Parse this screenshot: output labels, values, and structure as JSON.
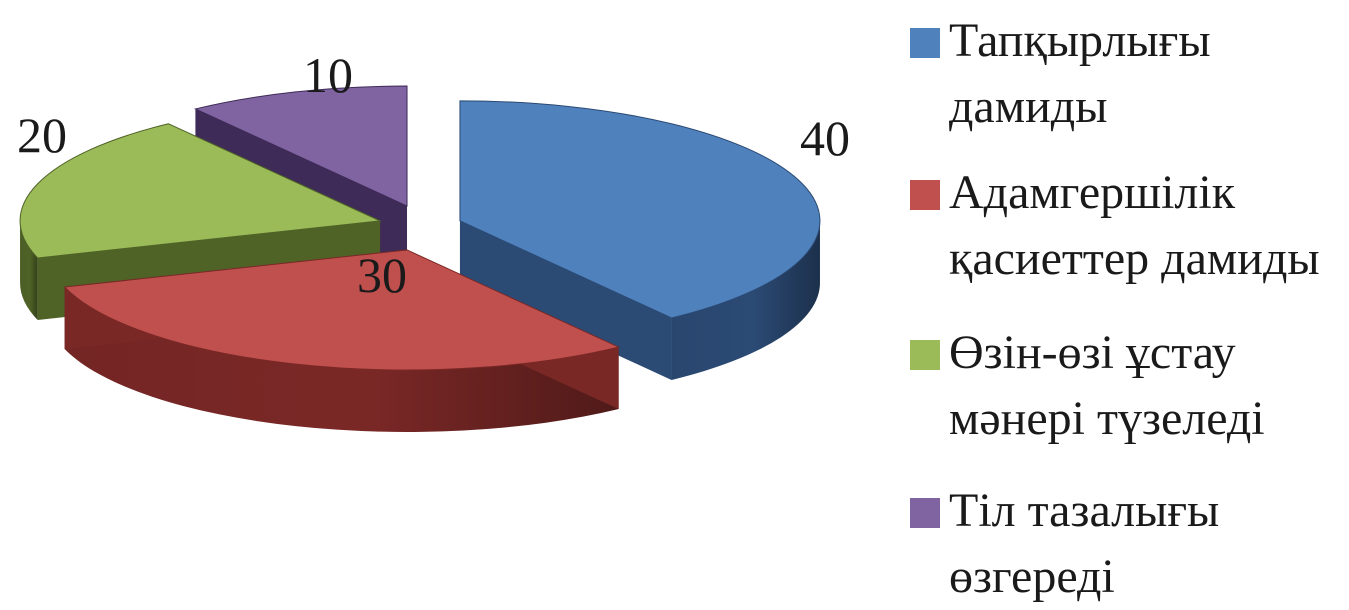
{
  "chart_data": {
    "type": "pie",
    "title": "",
    "slices": [
      {
        "label": "Тапқырлығы дамиды",
        "value": 40,
        "color": "#4F81BD",
        "side_color": "#2B4A74",
        "data_label": "40",
        "legend_line1": "Тапқырлығы",
        "legend_line2": "дамиды"
      },
      {
        "label": "Адамгершілік қасиеттер дамиды",
        "value": 30,
        "color": "#C0504D",
        "side_color": "#7A2826",
        "data_label": "30",
        "legend_line1": "Адамгершілік",
        "legend_line2": "қасиеттер дамиды"
      },
      {
        "label": "Өзін-өзі ұстау мәнері түзеледі",
        "value": 20,
        "color": "#9BBB59",
        "side_color": "#4F6327",
        "data_label": "20",
        "legend_line1": "Өзін-өзі ұстау",
        "legend_line2": "мәнері түзеледі"
      },
      {
        "label": "Тіл тазалығы өзгереді",
        "value": 10,
        "color": "#8064A2",
        "side_color": "#3E2B57",
        "data_label": "10",
        "legend_line1": "Тіл тазалығы",
        "legend_line2": "өзгереді"
      }
    ],
    "style": "3d-exploded",
    "legend_position": "right"
  }
}
